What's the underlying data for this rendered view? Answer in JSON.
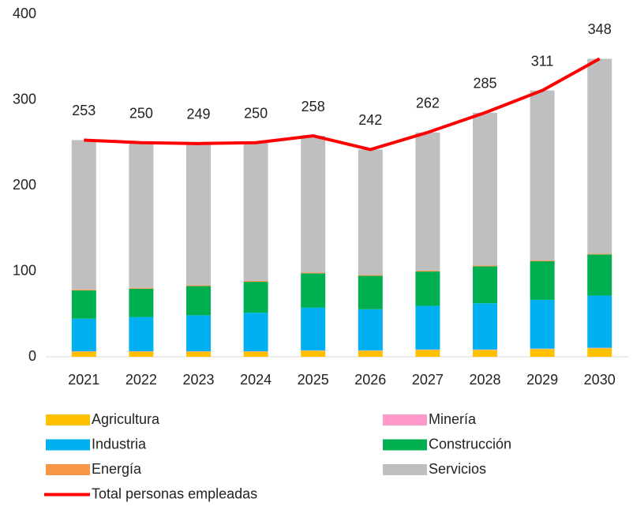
{
  "chart_data": {
    "type": "bar",
    "stacked": true,
    "categories": [
      "2021",
      "2022",
      "2023",
      "2024",
      "2025",
      "2026",
      "2027",
      "2028",
      "2029",
      "2030"
    ],
    "ylim": [
      0,
      400
    ],
    "yticks": [
      0,
      100,
      200,
      300,
      400
    ],
    "grid": false,
    "series": [
      {
        "name": "Agricultura",
        "color": "#ffc000",
        "values": [
          6,
          6,
          6,
          6,
          7,
          7,
          8,
          8,
          9,
          10
        ]
      },
      {
        "name": "Minería",
        "color": "#ff99cc",
        "values": [
          0.5,
          0.5,
          0.5,
          0.5,
          0.5,
          0.5,
          0.5,
          0.5,
          0.5,
          0.5
        ]
      },
      {
        "name": "Industria",
        "color": "#00b0f0",
        "values": [
          38,
          40,
          42,
          45,
          50,
          48,
          51,
          54,
          57,
          61
        ]
      },
      {
        "name": "Construcción",
        "color": "#00b050",
        "values": [
          33,
          33,
          34,
          36,
          40,
          39,
          40,
          43,
          45,
          48
        ]
      },
      {
        "name": "Energía",
        "color": "#f79646",
        "values": [
          1,
          1,
          1,
          1,
          1,
          1,
          1,
          1,
          1,
          1
        ]
      },
      {
        "name": "Servicios",
        "color": "#bfbfbf",
        "values": [
          174.5,
          169.5,
          165.5,
          161.5,
          159.5,
          146.5,
          161.5,
          178.5,
          198.5,
          227.5
        ]
      },
      {
        "name": "Total personas empleadas",
        "type": "line",
        "color": "#ff0000",
        "values": [
          253,
          250,
          249,
          250,
          258,
          242,
          262,
          285,
          311,
          348
        ]
      }
    ]
  }
}
